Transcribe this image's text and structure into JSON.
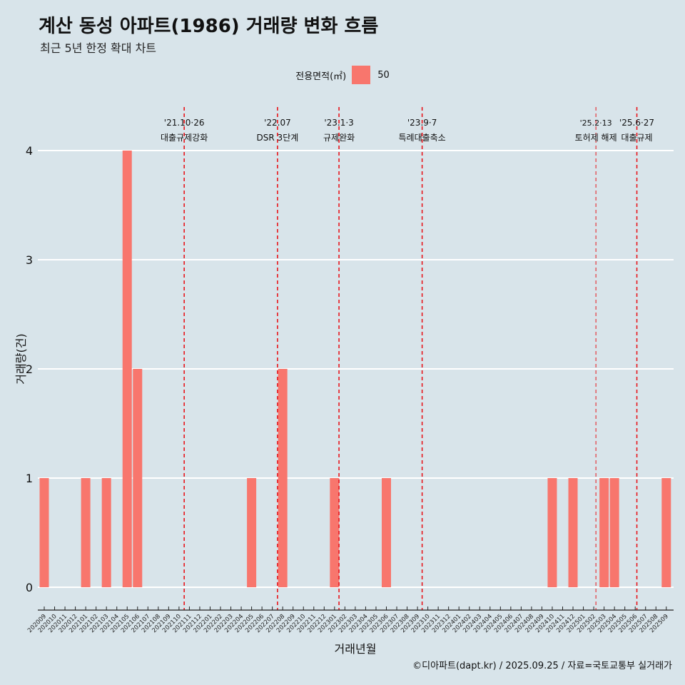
{
  "title": "계산 동성 아파트(1986) 거래량 변화 흐름",
  "subtitle": "최근 5년 한정 확대 차트",
  "caption": "©디아파트(dapt.kr) / 2025.09.25 / 자료=국토교통부 실거래가",
  "legend": {
    "title": "전용면적(㎡)",
    "items": [
      {
        "label": "50",
        "color": "#f8766d"
      }
    ]
  },
  "colors": {
    "background": "#d8e4ea",
    "bar": "#f8766d",
    "event_line": "#e8141a",
    "grid": "#ffffff"
  },
  "chart_data": {
    "type": "bar",
    "title": "계산 동성 아파트(1986) 거래량 변화 흐름",
    "xlabel": "거래년월",
    "ylabel": "거래량(건)",
    "ylim": [
      0,
      4
    ],
    "yticks": [
      0,
      1,
      2,
      3,
      4
    ],
    "categories": [
      "202009",
      "202010",
      "202011",
      "202012",
      "202101",
      "202102",
      "202103",
      "202104",
      "202105",
      "202106",
      "202107",
      "202108",
      "202109",
      "202110",
      "202111",
      "202112",
      "202201",
      "202202",
      "202203",
      "202204",
      "202205",
      "202206",
      "202207",
      "202208",
      "202209",
      "202210",
      "202211",
      "202212",
      "202301",
      "202302",
      "202303",
      "202304",
      "202305",
      "202306",
      "202307",
      "202308",
      "202309",
      "202310",
      "202311",
      "202312",
      "202401",
      "202402",
      "202403",
      "202404",
      "202405",
      "202406",
      "202407",
      "202408",
      "202409",
      "202410",
      "202411",
      "202412",
      "202501",
      "202502",
      "202503",
      "202504",
      "202505",
      "202506",
      "202507",
      "202508",
      "202509"
    ],
    "series": [
      {
        "name": "50",
        "values": [
          1,
          0,
          0,
          0,
          1,
          0,
          1,
          0,
          4,
          2,
          0,
          0,
          0,
          0,
          0,
          0,
          0,
          0,
          0,
          0,
          1,
          0,
          0,
          2,
          0,
          0,
          0,
          0,
          1,
          0,
          0,
          0,
          0,
          1,
          0,
          0,
          0,
          0,
          0,
          0,
          0,
          0,
          0,
          0,
          0,
          0,
          0,
          0,
          0,
          1,
          0,
          1,
          0,
          0,
          1,
          1,
          0,
          0,
          0,
          0,
          1
        ]
      }
    ],
    "events": [
      {
        "date": "'21.10·26",
        "label": "대출규제강화",
        "position": 13.5
      },
      {
        "date": "'22.07",
        "label": "DSR 3단계",
        "position": 22.5
      },
      {
        "date": "'23.1·3",
        "label": "규제완화",
        "position": 28.43
      },
      {
        "date": "'23.9·7",
        "label": "특례대출축소",
        "position": 36.45
      },
      {
        "date": "'25.2·13",
        "label": "토허제 해제",
        "position": 53.21
      },
      {
        "date": "'25.6·27",
        "label": "대출규제",
        "position": 57.16
      }
    ]
  }
}
